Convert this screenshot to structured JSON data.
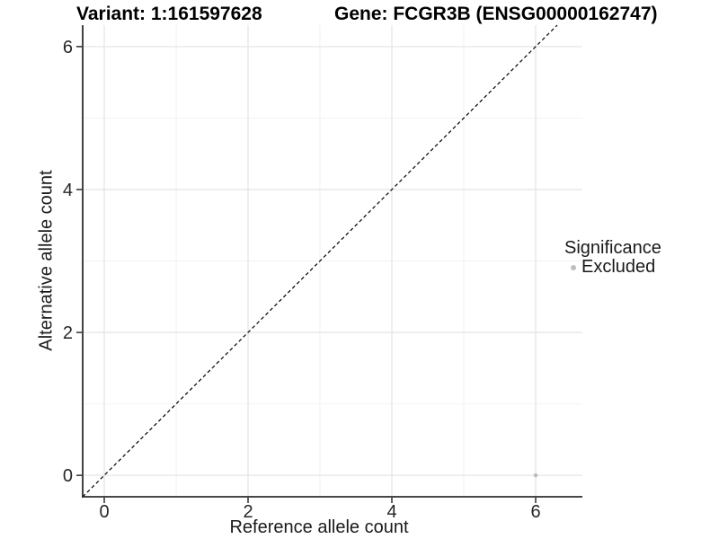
{
  "colors": {
    "background": "#ffffff",
    "axis_line": "#2e2e2e",
    "grid_major": "#e5e5e5",
    "grid_minor": "#f2f2f2",
    "identity_line": "#000000",
    "point_excluded": "#bdbdbd",
    "title_text": "#000000",
    "axis_text": "#262626"
  },
  "chart_data": {
    "type": "scatter",
    "title_left": "Variant: 1:161597628",
    "title_right": "Gene: FCGR3B (ENSG00000162747)",
    "xlabel": "Reference allele count",
    "ylabel": "Alternative allele count",
    "xlim": [
      -0.3,
      6.65
    ],
    "ylim": [
      -0.3,
      6.3
    ],
    "x_major_ticks": [
      0,
      2,
      4,
      6
    ],
    "x_minor_ticks": [
      1,
      3,
      5
    ],
    "y_major_ticks": [
      0,
      2,
      4,
      6
    ],
    "y_minor_ticks": [
      1,
      3,
      5
    ],
    "grid": true,
    "reference_line": {
      "type": "identity",
      "slope": 1,
      "intercept": 0,
      "style": "dashed",
      "color": "#000000"
    },
    "series": [
      {
        "name": "Excluded",
        "color": "#bdbdbd",
        "points": [
          {
            "x": 6,
            "y": 0
          }
        ]
      }
    ],
    "legend": {
      "title": "Significance",
      "position": "right",
      "entries": [
        {
          "label": "Excluded",
          "color": "#bdbdbd",
          "marker": "dot"
        }
      ]
    }
  }
}
